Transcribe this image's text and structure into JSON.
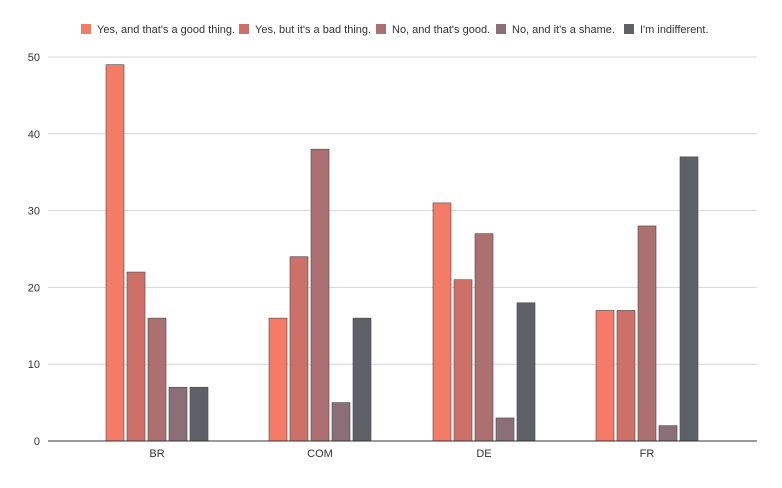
{
  "chart_data": {
    "type": "bar",
    "title": "",
    "xlabel": "",
    "ylabel": "",
    "ylim": [
      0,
      50
    ],
    "yticks": [
      0,
      10,
      20,
      30,
      40,
      50
    ],
    "grid": true,
    "legend_position": "top",
    "categories": [
      "BR",
      "COM",
      "DE",
      "FR"
    ],
    "series": [
      {
        "name": "Yes, and that's a good thing.",
        "color": "#f47b67",
        "values": [
          49,
          16,
          31,
          17
        ]
      },
      {
        "name": "Yes, but it's a bad thing.",
        "color": "#cd7168",
        "values": [
          22,
          24,
          21,
          17
        ]
      },
      {
        "name": "No, and that's good.",
        "color": "#ad7070",
        "values": [
          16,
          38,
          27,
          28
        ]
      },
      {
        "name": "No, and it's a shame.",
        "color": "#8a6e78",
        "values": [
          7,
          5,
          3,
          2
        ]
      },
      {
        "name": "I'm indifferent.",
        "color": "#5f6168",
        "values": [
          7,
          16,
          18,
          37
        ]
      }
    ]
  }
}
